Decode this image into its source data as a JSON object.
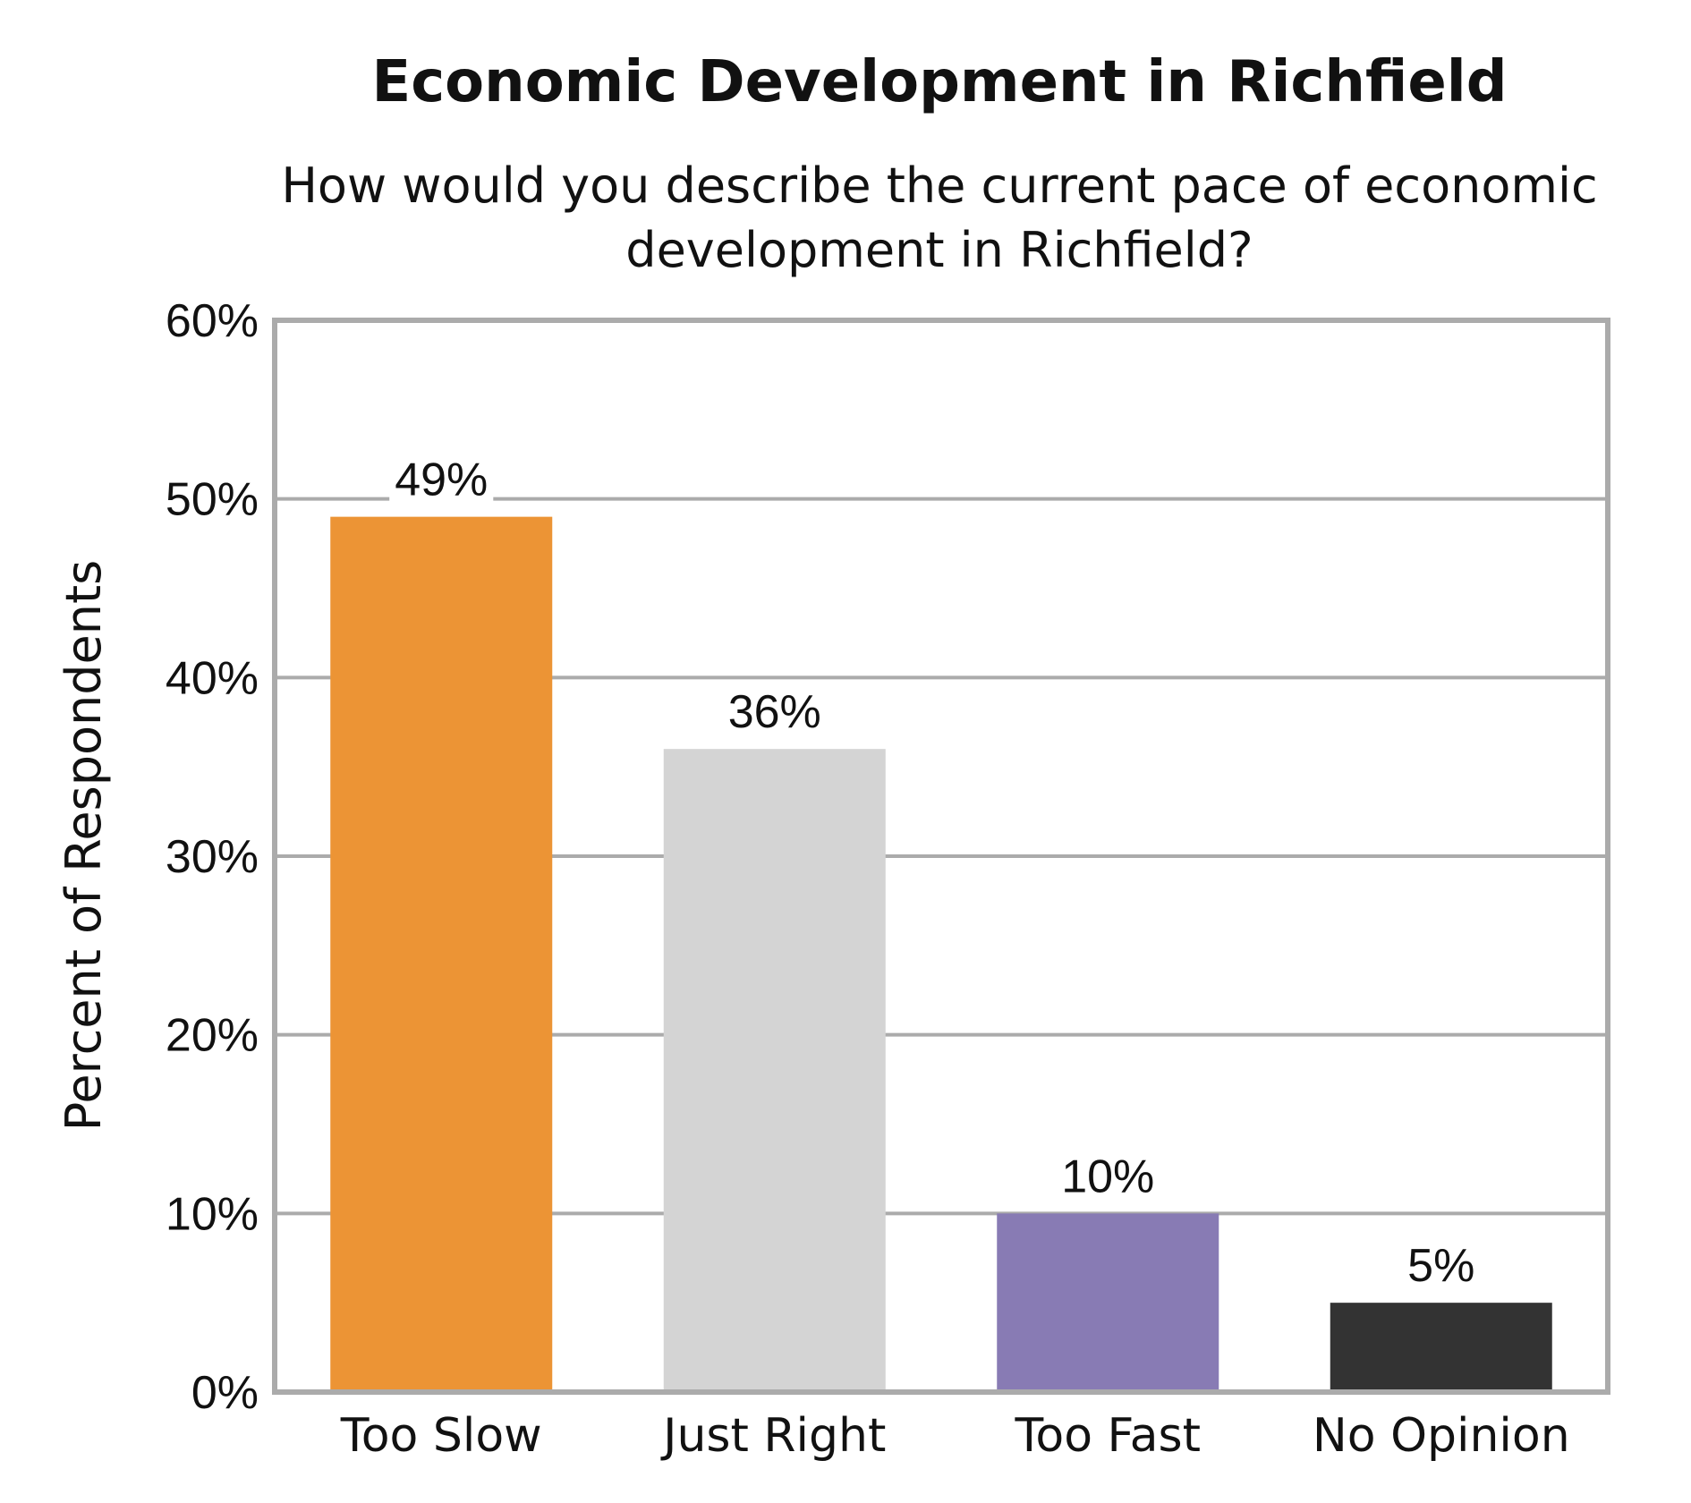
{
  "chart_data": {
    "type": "bar",
    "title": "Economic Development in Richfield",
    "subtitle": "How would you describe the current pace of economic development in Richfield?",
    "xlabel": "",
    "ylabel": "Percent of Respondents",
    "categories": [
      "Too Slow",
      "Just Right",
      "Too Fast",
      "No Opinion"
    ],
    "values": [
      49,
      36,
      10,
      5
    ],
    "value_labels": [
      "49%",
      "36%",
      "10%",
      "5%"
    ],
    "colors": [
      "#EC9435",
      "#D4D4D4",
      "#887BB4",
      "#333333"
    ],
    "ylim": [
      0,
      60
    ],
    "yticks": [
      0,
      10,
      20,
      30,
      40,
      50,
      60
    ],
    "ytick_labels": [
      "0%",
      "10%",
      "20%",
      "30%",
      "40%",
      "50%",
      "60%"
    ],
    "grid": true,
    "grid_color": "#ABABAB",
    "legend": "none"
  }
}
